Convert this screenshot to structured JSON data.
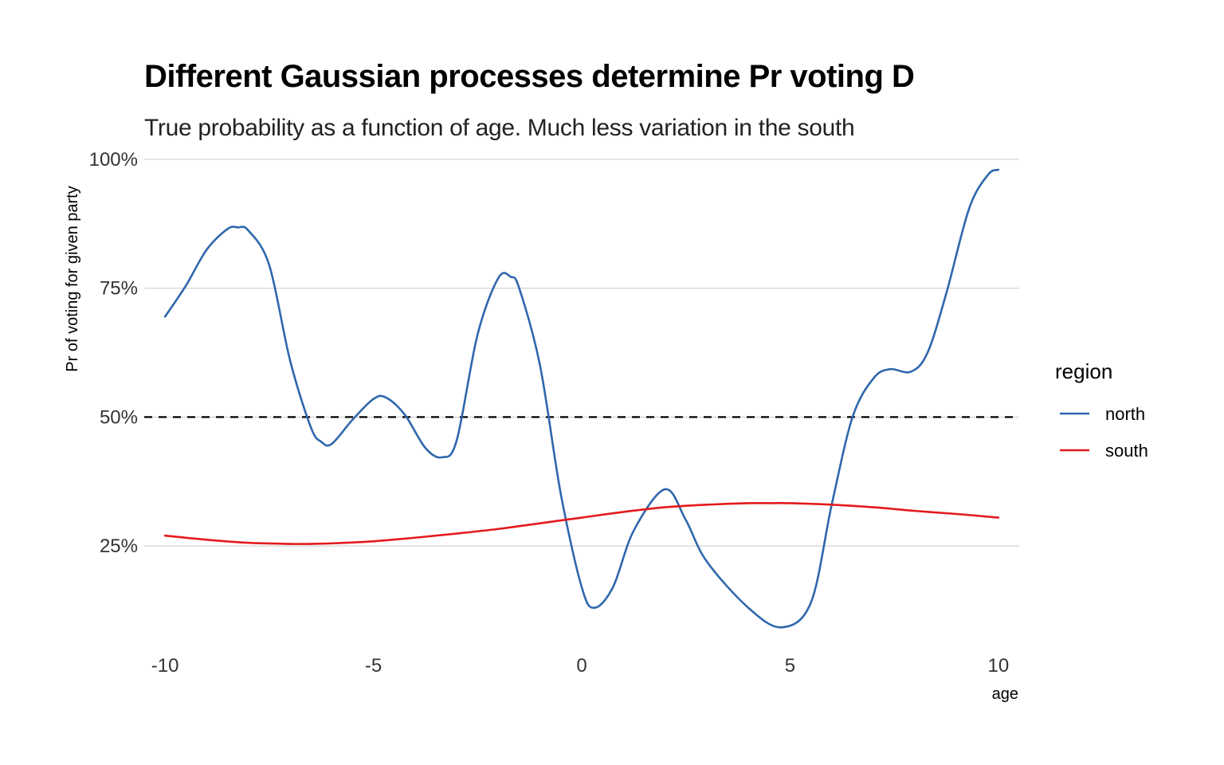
{
  "chart_data": {
    "type": "line",
    "title": "Different Gaussian processes determine Pr voting D",
    "subtitle": "True probability as a function of age. Much less variation in the south",
    "xlabel": "age",
    "ylabel": "Pr of voting for given party",
    "xlim": [
      -10.5,
      10.5
    ],
    "ylim": [
      0.06,
      1.0
    ],
    "x_ticks": [
      -10,
      -5,
      0,
      5,
      10
    ],
    "x_tick_labels": [
      "-10",
      "-5",
      "0",
      "5",
      "10"
    ],
    "y_ticks": [
      0.25,
      0.5,
      0.75,
      1.0
    ],
    "y_tick_labels": [
      "25%",
      "50%",
      "75%",
      "100%"
    ],
    "grid": "horizontal major",
    "reference_line": {
      "y": 0.5,
      "style": "dashed",
      "color": "#000000"
    },
    "legend": {
      "title": "region",
      "position": "right"
    },
    "series": [
      {
        "name": "north",
        "color": "#2F67AC",
        "x": [
          -10,
          -9.5,
          -9,
          -8.5,
          -8.25,
          -8,
          -7.5,
          -7,
          -6.5,
          -6.25,
          -6,
          -5.5,
          -5,
          -4.7,
          -4.25,
          -3.75,
          -3.35,
          -3,
          -2.5,
          -2,
          -1.7,
          -1.5,
          -1,
          -0.5,
          0,
          0.3,
          0.75,
          1.25,
          2,
          2.5,
          3,
          4,
          4.8,
          5.5,
          6,
          6.5,
          7,
          7.4,
          7.9,
          8.3,
          8.75,
          9.3,
          9.75,
          10
        ],
        "y": [
          0.695,
          0.755,
          0.825,
          0.865,
          0.868,
          0.862,
          0.795,
          0.61,
          0.48,
          0.452,
          0.448,
          0.495,
          0.535,
          0.538,
          0.505,
          0.44,
          0.422,
          0.455,
          0.66,
          0.77,
          0.772,
          0.75,
          0.6,
          0.35,
          0.17,
          0.13,
          0.17,
          0.28,
          0.36,
          0.3,
          0.22,
          0.13,
          0.092,
          0.14,
          0.33,
          0.5,
          0.575,
          0.593,
          0.588,
          0.625,
          0.74,
          0.905,
          0.97,
          0.98
        ]
      },
      {
        "name": "south",
        "color": "#E41A1C",
        "x": [
          -10,
          -9,
          -8,
          -7,
          -6.5,
          -6,
          -5,
          -4,
          -3,
          -2,
          -1,
          0,
          1,
          2,
          3,
          4,
          4.5,
          5,
          6,
          7,
          8,
          9,
          10
        ],
        "y": [
          0.27,
          0.262,
          0.256,
          0.254,
          0.254,
          0.255,
          0.259,
          0.266,
          0.274,
          0.283,
          0.294,
          0.305,
          0.316,
          0.325,
          0.33,
          0.333,
          0.333,
          0.333,
          0.33,
          0.325,
          0.318,
          0.312,
          0.305
        ]
      }
    ]
  }
}
